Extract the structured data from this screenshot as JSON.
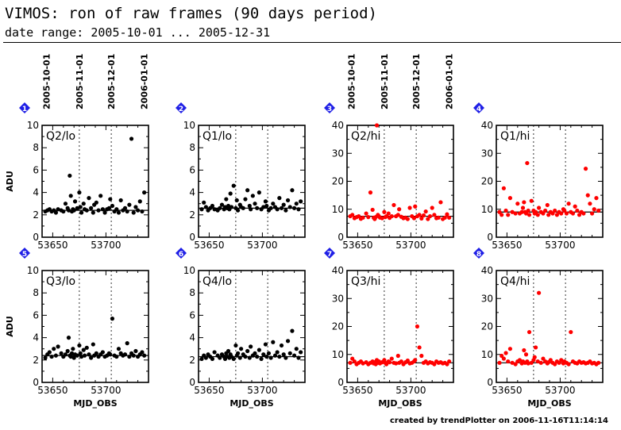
{
  "title": "VIMOS: ron of raw frames (90 days period)",
  "subtitle": "date range: 2005-10-01 ... 2005-12-31",
  "footer": "created by trendPlotter on 2006-11-16T11:14:14",
  "colors": {
    "black_series": "#000000",
    "red_series": "#ff0000",
    "badge": "#1f1fe6"
  },
  "top_axis": {
    "dates": [
      "2005-10-01",
      "2005-11-01",
      "2005-12-01",
      "2006-01-01"
    ],
    "mjd": [
      53644,
      53675,
      53705,
      53736
    ]
  },
  "chart_data": [
    {
      "type": "scatter",
      "badge": "1",
      "label": "Q2/lo",
      "ylabel": "ADU",
      "xlabel": "",
      "xlim": [
        53640,
        53740
      ],
      "ylim": [
        0,
        10
      ],
      "yticks": [
        0,
        2,
        4,
        6,
        8,
        10
      ],
      "xticks": [
        53650,
        53700
      ],
      "ref_line": 2.4,
      "color": "black",
      "x": [
        53643,
        53645,
        53647,
        53649,
        53651,
        53653,
        53655,
        53658,
        53660,
        53662,
        53664,
        53665,
        53666,
        53667,
        53668,
        53669,
        53670,
        53671,
        53673,
        53675,
        53676,
        53677,
        53679,
        53680,
        53682,
        53684,
        53686,
        53688,
        53689,
        53691,
        53693,
        53695,
        53697,
        53699,
        53701,
        53703,
        53704,
        53706,
        53708,
        53710,
        53712,
        53714,
        53716,
        53718,
        53720,
        53722,
        53724,
        53726,
        53728,
        53730,
        53732,
        53734,
        53736
      ],
      "y": [
        2.3,
        2.4,
        2.5,
        2.3,
        2.4,
        2.2,
        2.5,
        2.4,
        2.3,
        3.0,
        2.6,
        2.4,
        5.5,
        3.7,
        2.3,
        2.5,
        2.4,
        3.2,
        2.6,
        4.0,
        2.7,
        2.2,
        3.0,
        2.5,
        2.4,
        3.5,
        2.6,
        2.2,
        2.9,
        3.1,
        2.4,
        3.7,
        2.5,
        2.2,
        2.5,
        2.6,
        3.4,
        2.8,
        2.3,
        2.5,
        2.2,
        3.3,
        2.4,
        2.6,
        2.3,
        2.9,
        8.8,
        2.2,
        2.7,
        2.4,
        3.2,
        2.3,
        4.0
      ]
    },
    {
      "type": "scatter",
      "badge": "2",
      "label": "Q1/lo",
      "ylabel": "",
      "xlabel": "",
      "xlim": [
        53640,
        53740
      ],
      "ylim": [
        0,
        10
      ],
      "yticks": [
        0,
        2,
        4,
        6,
        8,
        10
      ],
      "xticks": [
        53650,
        53700
      ],
      "ref_line": 2.6,
      "color": "black",
      "x": [
        53643,
        53645,
        53647,
        53649,
        53651,
        53653,
        53655,
        53658,
        53660,
        53662,
        53664,
        53665,
        53666,
        53667,
        53668,
        53669,
        53670,
        53671,
        53673,
        53675,
        53676,
        53677,
        53679,
        53680,
        53682,
        53684,
        53686,
        53688,
        53689,
        53691,
        53693,
        53695,
        53697,
        53699,
        53701,
        53703,
        53704,
        53706,
        53708,
        53710,
        53712,
        53714,
        53716,
        53718,
        53720,
        53722,
        53724,
        53726,
        53728,
        53730,
        53732,
        53734,
        53736
      ],
      "y": [
        2.5,
        3.1,
        2.7,
        2.4,
        2.6,
        2.8,
        2.5,
        2.4,
        2.6,
        2.9,
        2.5,
        2.7,
        3.4,
        2.6,
        2.8,
        2.5,
        3.9,
        2.7,
        4.6,
        2.6,
        3.3,
        2.4,
        2.9,
        2.7,
        2.6,
        3.4,
        4.2,
        2.8,
        2.5,
        3.7,
        3.0,
        2.6,
        4.0,
        2.5,
        2.7,
        3.2,
        2.8,
        2.4,
        2.6,
        3.0,
        2.7,
        2.5,
        3.5,
        2.6,
        2.9,
        2.4,
        3.3,
        2.7,
        4.2,
        2.6,
        3.0,
        2.5,
        3.2
      ]
    },
    {
      "type": "scatter",
      "badge": "3",
      "label": "Q2/hi",
      "ylabel": "",
      "xlabel": "",
      "xlim": [
        53640,
        53740
      ],
      "ylim": [
        0,
        40
      ],
      "yticks": [
        0,
        10,
        20,
        30,
        40
      ],
      "xticks": [
        53650,
        53700
      ],
      "ref_line": 7.5,
      "color": "red",
      "x": [
        53643,
        53645,
        53647,
        53649,
        53651,
        53653,
        53655,
        53658,
        53660,
        53662,
        53664,
        53665,
        53666,
        53667,
        53668,
        53669,
        53670,
        53671,
        53673,
        53675,
        53676,
        53677,
        53679,
        53680,
        53682,
        53684,
        53686,
        53688,
        53689,
        53691,
        53693,
        53695,
        53697,
        53699,
        53701,
        53703,
        53704,
        53706,
        53708,
        53710,
        53712,
        53714,
        53716,
        53718,
        53720,
        53722,
        53724,
        53726,
        53728,
        53730,
        53732,
        53734,
        53736
      ],
      "y": [
        7.5,
        8.0,
        6.8,
        7.2,
        7.5,
        6.6,
        7.0,
        8.5,
        7.2,
        16.0,
        9.8,
        7.0,
        6.5,
        7.2,
        40.0,
        8.0,
        7.5,
        7.0,
        6.8,
        9.0,
        7.2,
        7.5,
        8.5,
        6.9,
        7.5,
        11.5,
        7.5,
        8.0,
        10.0,
        7.3,
        6.8,
        7.0,
        6.5,
        10.5,
        7.5,
        6.8,
        11.0,
        7.5,
        8.0,
        6.7,
        7.8,
        9.2,
        6.5,
        7.5,
        10.5,
        8.0,
        6.8,
        7.0,
        12.5,
        6.5,
        7.0,
        8.2,
        7.0
      ]
    },
    {
      "type": "scatter",
      "badge": "4",
      "label": "Q1/hi",
      "ylabel": "",
      "xlabel": "",
      "xlim": [
        53640,
        53740
      ],
      "ylim": [
        0,
        40
      ],
      "yticks": [
        0,
        10,
        20,
        30,
        40
      ],
      "xticks": [
        53650,
        53700
      ],
      "ref_line": 9.0,
      "color": "red",
      "x": [
        53643,
        53645,
        53647,
        53649,
        53651,
        53653,
        53655,
        53658,
        53660,
        53662,
        53664,
        53665,
        53666,
        53667,
        53668,
        53669,
        53670,
        53671,
        53673,
        53675,
        53676,
        53677,
        53679,
        53680,
        53682,
        53684,
        53686,
        53688,
        53689,
        53691,
        53693,
        53695,
        53697,
        53699,
        53701,
        53703,
        53704,
        53706,
        53708,
        53710,
        53712,
        53714,
        53716,
        53718,
        53720,
        53722,
        53724,
        53726,
        53728,
        53730,
        53732,
        53734,
        53736
      ],
      "y": [
        9.0,
        8.0,
        17.5,
        9.5,
        8.0,
        14.0,
        9.0,
        8.5,
        12.0,
        8.5,
        9.0,
        10.5,
        12.5,
        9.0,
        8.5,
        26.5,
        9.5,
        8.0,
        13.0,
        9.5,
        8.5,
        9.0,
        8.0,
        10.5,
        9.0,
        8.5,
        9.5,
        11.5,
        8.0,
        9.0,
        8.5,
        9.5,
        8.0,
        9.0,
        8.5,
        10.0,
        9.5,
        8.5,
        12.0,
        9.0,
        8.5,
        11.0,
        9.5,
        8.0,
        9.0,
        8.5,
        24.5,
        15.0,
        12.0,
        8.5,
        10.0,
        14.0,
        9.5
      ]
    },
    {
      "type": "scatter",
      "badge": "5",
      "label": "Q3/lo",
      "ylabel": "ADU",
      "xlabel": "MJD_OBS",
      "xlim": [
        53640,
        53740
      ],
      "ylim": [
        0,
        10
      ],
      "yticks": [
        0,
        2,
        4,
        6,
        8,
        10
      ],
      "xticks": [
        53650,
        53700
      ],
      "ref_line": 2.4,
      "color": "black",
      "x": [
        53643,
        53645,
        53647,
        53649,
        53651,
        53653,
        53655,
        53658,
        53660,
        53662,
        53664,
        53665,
        53666,
        53667,
        53668,
        53669,
        53670,
        53671,
        53673,
        53675,
        53676,
        53677,
        53679,
        53680,
        53682,
        53684,
        53686,
        53688,
        53689,
        53691,
        53693,
        53695,
        53697,
        53699,
        53701,
        53703,
        53704,
        53706,
        53708,
        53710,
        53712,
        53714,
        53716,
        53718,
        53720,
        53722,
        53724,
        53726,
        53728,
        53730,
        53732,
        53734,
        53736
      ],
      "y": [
        2.2,
        2.5,
        2.7,
        2.3,
        3.0,
        2.4,
        3.2,
        2.6,
        2.3,
        2.5,
        2.8,
        4.0,
        2.4,
        2.3,
        2.6,
        3.0,
        2.2,
        2.5,
        2.4,
        3.3,
        2.6,
        2.3,
        2.9,
        2.4,
        3.1,
        2.5,
        2.2,
        3.4,
        2.4,
        2.6,
        2.3,
        2.5,
        2.7,
        2.3,
        2.4,
        2.6,
        2.5,
        5.7,
        2.4,
        2.3,
        3.0,
        2.6,
        2.4,
        2.5,
        3.5,
        2.3,
        2.6,
        2.4,
        2.8,
        2.3,
        2.5,
        2.7,
        2.4
      ]
    },
    {
      "type": "scatter",
      "badge": "6",
      "label": "Q4/lo",
      "ylabel": "",
      "xlabel": "MJD_OBS",
      "xlim": [
        53640,
        53740
      ],
      "ylim": [
        0,
        10
      ],
      "yticks": [
        0,
        2,
        4,
        6,
        8,
        10
      ],
      "xticks": [
        53650,
        53700
      ],
      "ref_line": 2.3,
      "color": "black",
      "x": [
        53643,
        53645,
        53647,
        53649,
        53651,
        53653,
        53655,
        53658,
        53660,
        53662,
        53664,
        53665,
        53666,
        53667,
        53668,
        53669,
        53670,
        53671,
        53673,
        53675,
        53676,
        53677,
        53679,
        53680,
        53682,
        53684,
        53686,
        53688,
        53689,
        53691,
        53693,
        53695,
        53697,
        53699,
        53701,
        53703,
        53704,
        53706,
        53708,
        53710,
        53712,
        53714,
        53716,
        53718,
        53720,
        53722,
        53724,
        53726,
        53728,
        53730,
        53732,
        53734,
        53736
      ],
      "y": [
        2.1,
        2.4,
        2.2,
        2.5,
        2.3,
        2.1,
        2.7,
        2.4,
        2.2,
        2.5,
        2.3,
        2.1,
        2.6,
        2.3,
        2.8,
        2.2,
        2.5,
        2.3,
        2.1,
        3.3,
        2.4,
        2.6,
        2.2,
        3.0,
        2.5,
        2.3,
        2.8,
        2.2,
        3.2,
        2.4,
        2.6,
        2.3,
        2.9,
        2.1,
        2.5,
        3.4,
        2.3,
        2.6,
        2.2,
        3.6,
        2.4,
        2.7,
        2.3,
        3.3,
        2.5,
        2.2,
        3.7,
        2.6,
        4.6,
        2.4,
        3.0,
        2.2,
        2.7
      ]
    },
    {
      "type": "scatter",
      "badge": "7",
      "label": "Q3/hi",
      "ylabel": "",
      "xlabel": "MJD_OBS",
      "xlim": [
        53640,
        53740
      ],
      "ylim": [
        0,
        40
      ],
      "yticks": [
        0,
        10,
        20,
        30,
        40
      ],
      "xticks": [
        53650,
        53700
      ],
      "ref_line": 7.0,
      "color": "red",
      "x": [
        53643,
        53645,
        53647,
        53649,
        53651,
        53653,
        53655,
        53658,
        53660,
        53662,
        53664,
        53665,
        53666,
        53667,
        53668,
        53669,
        53670,
        53671,
        53673,
        53675,
        53676,
        53677,
        53679,
        53680,
        53682,
        53684,
        53686,
        53688,
        53689,
        53691,
        53693,
        53695,
        53697,
        53699,
        53701,
        53703,
        53704,
        53706,
        53708,
        53710,
        53712,
        53714,
        53716,
        53718,
        53720,
        53722,
        53724,
        53726,
        53728,
        53730,
        53732,
        53734,
        53736
      ],
      "y": [
        7.0,
        8.5,
        7.5,
        6.5,
        7.0,
        7.5,
        6.8,
        7.2,
        6.5,
        7.0,
        7.5,
        6.8,
        7.2,
        6.5,
        8.0,
        7.0,
        7.5,
        6.8,
        7.2,
        8.0,
        7.0,
        6.5,
        7.5,
        7.2,
        8.5,
        7.0,
        6.8,
        9.5,
        7.0,
        7.5,
        6.5,
        7.2,
        7.8,
        6.8,
        7.0,
        7.5,
        8.0,
        20.0,
        12.5,
        9.5,
        7.0,
        7.5,
        6.8,
        7.2,
        7.0,
        6.5,
        7.5,
        7.0,
        7.2,
        6.8,
        7.0,
        6.5,
        7.5
      ]
    },
    {
      "type": "scatter",
      "badge": "8",
      "label": "Q4/hi",
      "ylabel": "",
      "xlabel": "MJD_OBS",
      "xlim": [
        53640,
        53740
      ],
      "ylim": [
        0,
        40
      ],
      "yticks": [
        0,
        10,
        20,
        30,
        40
      ],
      "xticks": [
        53650,
        53700
      ],
      "ref_line": 7.0,
      "color": "red",
      "x": [
        53643,
        53645,
        53647,
        53649,
        53651,
        53653,
        53655,
        53658,
        53660,
        53662,
        53664,
        53665,
        53666,
        53667,
        53668,
        53669,
        53670,
        53671,
        53673,
        53675,
        53676,
        53677,
        53679,
        53680,
        53682,
        53684,
        53686,
        53688,
        53689,
        53691,
        53693,
        53695,
        53697,
        53699,
        53701,
        53703,
        53704,
        53706,
        53708,
        53710,
        53712,
        53714,
        53716,
        53718,
        53720,
        53722,
        53724,
        53726,
        53728,
        53730,
        53732,
        53734,
        53736
      ],
      "y": [
        7.0,
        9.5,
        8.5,
        10.5,
        7.5,
        12.0,
        7.0,
        6.5,
        7.5,
        8.0,
        6.8,
        7.5,
        11.5,
        7.0,
        10.0,
        7.5,
        6.8,
        18.0,
        7.0,
        8.0,
        9.0,
        12.5,
        7.5,
        32.0,
        7.0,
        8.5,
        7.5,
        6.8,
        7.2,
        8.0,
        7.0,
        6.5,
        7.5,
        7.0,
        8.0,
        6.8,
        7.5,
        7.0,
        6.5,
        18.0,
        7.5,
        7.0,
        6.8,
        7.5,
        7.0,
        7.2,
        6.8,
        7.0,
        7.5,
        6.8,
        7.0,
        6.5,
        7.0
      ]
    }
  ]
}
